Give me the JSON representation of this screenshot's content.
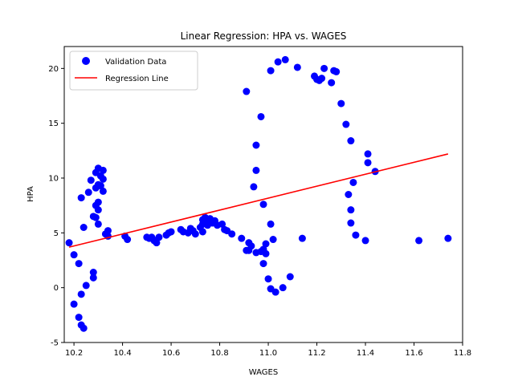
{
  "chart_data": {
    "type": "scatter",
    "title": "Linear Regression: HPA vs. WAGES",
    "xlabel": "WAGES",
    "ylabel": "HPA",
    "xlim": [
      10.16,
      11.8
    ],
    "ylim": [
      -5,
      22
    ],
    "x_ticks": [
      "10.2",
      "10.4",
      "10.6",
      "10.8",
      "11.0",
      "11.2",
      "11.4",
      "11.6",
      "11.8"
    ],
    "y_ticks": [
      "-5",
      "0",
      "5",
      "10",
      "15",
      "20"
    ],
    "grid": false,
    "legend_position": "top-left",
    "series": [
      {
        "name": "Validation Data",
        "kind": "points",
        "color": "#0000ff",
        "points": [
          [
            10.18,
            4.1
          ],
          [
            10.2,
            3.0
          ],
          [
            10.2,
            -1.5
          ],
          [
            10.22,
            2.2
          ],
          [
            10.22,
            -2.7
          ],
          [
            10.23,
            -3.4
          ],
          [
            10.23,
            -0.6
          ],
          [
            10.24,
            -3.7
          ],
          [
            10.23,
            8.2
          ],
          [
            10.24,
            5.5
          ],
          [
            10.25,
            0.2
          ],
          [
            10.26,
            8.7
          ],
          [
            10.27,
            9.8
          ],
          [
            10.28,
            6.5
          ],
          [
            10.28,
            1.4
          ],
          [
            10.28,
            0.9
          ],
          [
            10.29,
            9.1
          ],
          [
            10.29,
            10.5
          ],
          [
            10.29,
            7.5
          ],
          [
            10.29,
            6.4
          ],
          [
            10.3,
            10.9
          ],
          [
            10.3,
            9.4
          ],
          [
            10.3,
            7.8
          ],
          [
            10.3,
            7.1
          ],
          [
            10.3,
            5.8
          ],
          [
            10.31,
            10.2
          ],
          [
            10.31,
            9.3
          ],
          [
            10.32,
            10.7
          ],
          [
            10.32,
            9.9
          ],
          [
            10.32,
            8.8
          ],
          [
            10.33,
            4.9
          ],
          [
            10.34,
            5.2
          ],
          [
            10.34,
            4.7
          ],
          [
            10.41,
            4.7
          ],
          [
            10.42,
            4.4
          ],
          [
            10.5,
            4.6
          ],
          [
            10.51,
            4.5
          ],
          [
            10.52,
            4.6
          ],
          [
            10.53,
            4.3
          ],
          [
            10.54,
            4.1
          ],
          [
            10.55,
            4.6
          ],
          [
            10.58,
            4.8
          ],
          [
            10.59,
            5.0
          ],
          [
            10.6,
            5.1
          ],
          [
            10.64,
            5.3
          ],
          [
            10.65,
            5.1
          ],
          [
            10.67,
            5.0
          ],
          [
            10.68,
            5.4
          ],
          [
            10.69,
            5.2
          ],
          [
            10.7,
            4.9
          ],
          [
            10.72,
            5.5
          ],
          [
            10.73,
            5.1
          ],
          [
            10.73,
            5.8
          ],
          [
            10.73,
            6.2
          ],
          [
            10.74,
            6.4
          ],
          [
            10.75,
            5.7
          ],
          [
            10.75,
            6.1
          ],
          [
            10.76,
            6.3
          ],
          [
            10.76,
            6.0
          ],
          [
            10.77,
            5.9
          ],
          [
            10.78,
            6.1
          ],
          [
            10.79,
            5.7
          ],
          [
            10.81,
            5.8
          ],
          [
            10.82,
            5.3
          ],
          [
            10.83,
            5.2
          ],
          [
            10.85,
            4.9
          ],
          [
            10.89,
            4.5
          ],
          [
            10.91,
            3.4
          ],
          [
            10.91,
            17.9
          ],
          [
            10.92,
            4.1
          ],
          [
            10.92,
            3.4
          ],
          [
            10.93,
            3.8
          ],
          [
            10.94,
            9.2
          ],
          [
            10.95,
            13.0
          ],
          [
            10.95,
            10.7
          ],
          [
            10.95,
            3.2
          ],
          [
            10.97,
            15.6
          ],
          [
            10.97,
            3.3
          ],
          [
            10.98,
            7.6
          ],
          [
            10.98,
            3.5
          ],
          [
            10.98,
            2.2
          ],
          [
            10.99,
            4.0
          ],
          [
            10.99,
            3.1
          ],
          [
            11.0,
            0.8
          ],
          [
            11.01,
            -0.1
          ],
          [
            11.01,
            19.8
          ],
          [
            11.01,
            5.8
          ],
          [
            11.02,
            4.4
          ],
          [
            11.03,
            -0.4
          ],
          [
            11.04,
            20.6
          ],
          [
            11.06,
            0.0
          ],
          [
            11.07,
            20.8
          ],
          [
            11.09,
            1.0
          ],
          [
            11.12,
            20.1
          ],
          [
            11.14,
            4.5
          ],
          [
            11.19,
            19.3
          ],
          [
            11.2,
            19.0
          ],
          [
            11.21,
            18.9
          ],
          [
            11.22,
            19.1
          ],
          [
            11.23,
            20.0
          ],
          [
            11.26,
            18.7
          ],
          [
            11.27,
            19.8
          ],
          [
            11.28,
            19.7
          ],
          [
            11.3,
            16.8
          ],
          [
            11.32,
            14.9
          ],
          [
            11.33,
            8.5
          ],
          [
            11.34,
            13.4
          ],
          [
            11.34,
            7.1
          ],
          [
            11.34,
            5.9
          ],
          [
            11.35,
            9.6
          ],
          [
            11.36,
            4.8
          ],
          [
            11.4,
            4.3
          ],
          [
            11.41,
            12.2
          ],
          [
            11.41,
            11.4
          ],
          [
            11.44,
            10.6
          ],
          [
            11.62,
            4.3
          ],
          [
            11.74,
            4.5
          ]
        ]
      },
      {
        "name": "Regression Line",
        "kind": "line",
        "color": "#ff0000",
        "points": [
          [
            10.18,
            3.7
          ],
          [
            11.74,
            12.2
          ]
        ]
      }
    ]
  }
}
